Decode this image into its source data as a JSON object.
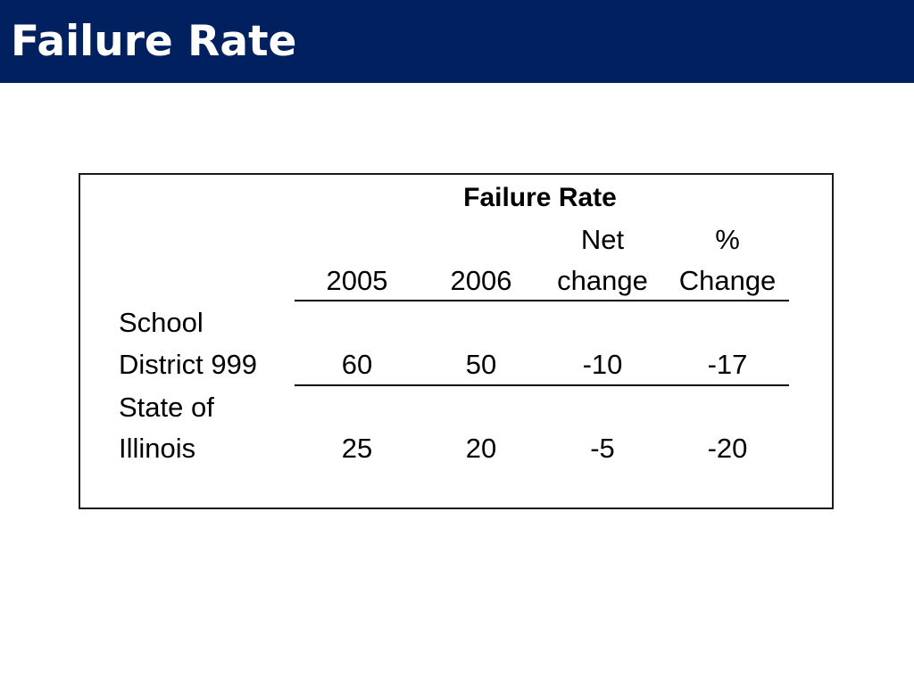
{
  "slide": {
    "title": "Failure Rate"
  },
  "table": {
    "group_header": "Failure Rate",
    "columns": {
      "year1": "2005",
      "year2": "2006",
      "net_line1": "Net",
      "net_line2": "change",
      "pct_line1": "%",
      "pct_line2": "Change"
    },
    "rows": [
      {
        "label_line1": "School",
        "label_line2": "District 999",
        "y2005": "60",
        "y2006": "50",
        "net_change": "-10",
        "pct_change": "-17"
      },
      {
        "label_line1": "State of",
        "label_line2": "Illinois",
        "y2005": "25",
        "y2006": "20",
        "net_change": "-5",
        "pct_change": "-20"
      }
    ]
  }
}
